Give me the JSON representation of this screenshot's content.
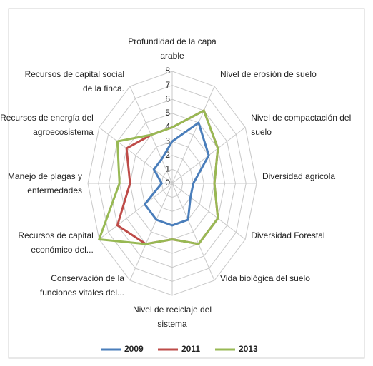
{
  "chart_data": {
    "type": "radar",
    "categories": [
      "Profundidad de la capa arable",
      "Nivel de erosión de suelo",
      "Nivel de compactación del suelo",
      "Diversidad agricola",
      "Diversidad Forestal",
      "Vida biológica del suelo",
      "Nivel de reciclaje del sistema",
      "Conservación de la funciones vitales del...",
      "Recursos de capital económico del...",
      "Manejo de plagas y enfermedades",
      "Recursos de energía del agroecosistema",
      "Recursos de capital social de la finca."
    ],
    "series": [
      {
        "name": "2009",
        "color": "#4a7ebb",
        "values": [
          3,
          5,
          4,
          2,
          2,
          3,
          3,
          3,
          3,
          1,
          2,
          2
        ]
      },
      {
        "name": "2011",
        "color": "#be4b48",
        "values": [
          4,
          6,
          5,
          4,
          5,
          5,
          4,
          5,
          6,
          4,
          5,
          4
        ]
      },
      {
        "name": "2013",
        "color": "#98b954",
        "values": [
          4,
          6,
          5,
          4,
          5,
          5,
          4,
          5,
          8,
          5,
          6,
          4
        ]
      }
    ],
    "ylim": [
      0,
      8
    ],
    "yticks": [
      0,
      1,
      2,
      3,
      4,
      5,
      6,
      7,
      8
    ],
    "grid": true,
    "legend": "bottom"
  }
}
